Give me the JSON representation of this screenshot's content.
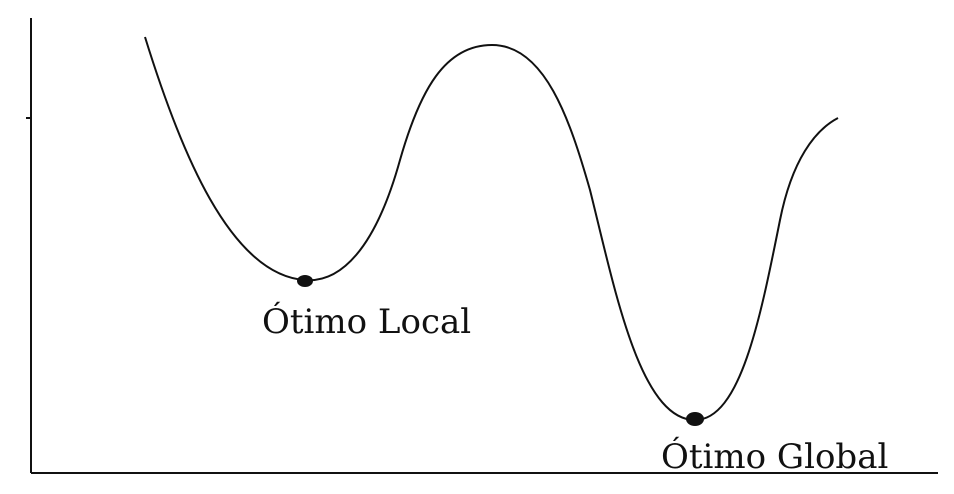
{
  "diagram": {
    "labels": {
      "local_optimum": "Ótimo Local",
      "global_optimum": "Ótimo Global"
    },
    "style": {
      "line_color": "#111111",
      "background": "#ffffff"
    }
  }
}
